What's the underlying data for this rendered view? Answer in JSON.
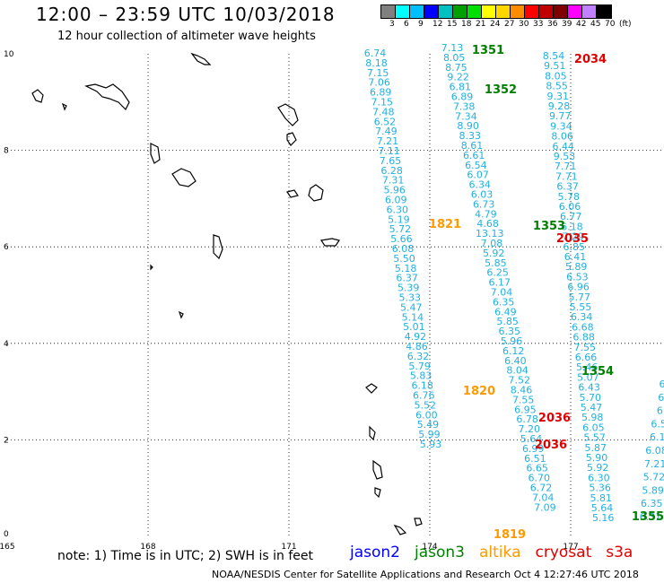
{
  "title": "12:00 – 23:59 UTC 10/03/2018",
  "subtitle": "12 hour collection of altimeter wave heights",
  "colorbar": {
    "colors": [
      "#808080",
      "#00ffff",
      "#00bfff",
      "#0000ff",
      "#00c0c0",
      "#00a000",
      "#00e000",
      "#ffff00",
      "#ffd700",
      "#ff8c00",
      "#ff0000",
      "#c00000",
      "#800000",
      "#ff00ff",
      "#c080ff",
      "#000000"
    ],
    "labels": [
      "3",
      "6",
      "9",
      "12",
      "15",
      "18",
      "21",
      "24",
      "27",
      "30",
      "33",
      "36",
      "39",
      "42",
      "45",
      "70",
      "(ft)"
    ]
  },
  "axes": {
    "x_ticks": [
      "165",
      "168",
      "171",
      "174",
      "177"
    ],
    "y_ticks": [
      "0",
      "2",
      "4",
      "6",
      "8",
      "10"
    ]
  },
  "tracks": [
    {
      "color": "#20b0e0",
      "values": [
        "6.74",
        "8.18",
        "7.15",
        "7.06",
        "6.89",
        "7.15",
        "7.48",
        "6.52",
        "7.49",
        "7.21",
        "7.11",
        "7.65",
        "6.28",
        "7.31",
        "5.96",
        "6.09",
        "6.30",
        "5.19",
        "5.72",
        "5.66",
        "6.08",
        "5.50",
        "5.18",
        "6.37",
        "5.39",
        "5.33",
        "5.47",
        "5.14",
        "5.01",
        "4.92",
        "4.86",
        "6.32",
        "5.79",
        "5.83",
        "6.18",
        "6.76",
        "5.52",
        "6.00",
        "5.49",
        "5.99",
        "5.93"
      ]
    },
    {
      "color": "#20b0e0",
      "values": [
        "7.13",
        "8.05",
        "8.75",
        "9.22",
        "6.81",
        "6.89",
        "7.38",
        "7.34",
        "8.90",
        "8.33",
        "8.61",
        "6.61",
        "6.54",
        "6.07",
        "6.34",
        "6.03",
        "6.73",
        "4.79",
        "4.68",
        "13.13",
        "7.08",
        "5.92",
        "5.85",
        "6.25",
        "6.17",
        "7.04",
        "6.35",
        "6.49",
        "5.85",
        "6.35",
        "5.96",
        "6.12",
        "6.40",
        "8.04",
        "7.52",
        "8.46",
        "7.55",
        "6.95",
        "6.78",
        "7.20",
        "5.64",
        "6.99",
        "6.51",
        "6.65",
        "6.70",
        "6.72",
        "7.04",
        "7.09"
      ]
    },
    {
      "color": "#20b0e0",
      "values": [
        "8.54",
        "9.51",
        "8.05",
        "8.55",
        "9.31",
        "9.28",
        "9.77",
        "9.34",
        "8.06",
        "6.44",
        "9.53",
        "7.71",
        "7.71",
        "6.37",
        "5.78",
        "6.06",
        "6.77",
        "6.18",
        "7.29",
        "6.85",
        "6.41",
        "5.89",
        "6.53",
        "6.96",
        "5.77",
        "5.55",
        "6.34",
        "6.68",
        "6.88",
        "7.55",
        "6.66",
        "5.46",
        "5.07",
        "6.43",
        "5.70",
        "5.47",
        "5.98",
        "6.05",
        "5.57",
        "5.87",
        "5.90",
        "5.92",
        "6.30",
        "5.36",
        "5.81",
        "5.64",
        "5.16"
      ]
    },
    {
      "color": "#20b0e0",
      "values": [
        "6",
        "6",
        "6",
        "6.5",
        "6.1",
        "6.08",
        "7.21",
        "5.72",
        "5.89",
        "6.35",
        "6.31"
      ]
    }
  ],
  "times": [
    {
      "text": "1351",
      "color": "#008000"
    },
    {
      "text": "1352",
      "color": "#008000"
    },
    {
      "text": "2034",
      "color": "#e00000"
    },
    {
      "text": "1821",
      "color": "#ff9900"
    },
    {
      "text": "1353",
      "color": "#008000"
    },
    {
      "text": "2035",
      "color": "#e00000"
    },
    {
      "text": "1354",
      "color": "#008000"
    },
    {
      "text": "1820",
      "color": "#ff9900"
    },
    {
      "text": "2036",
      "color": "#e00000"
    },
    {
      "text": "2036",
      "color": "#e00000"
    },
    {
      "text": "1819",
      "color": "#ff9900"
    },
    {
      "text": "1355",
      "color": "#008000"
    }
  ],
  "note": "note:  1) Time is in UTC;  2) SWH is in feet",
  "legend": [
    {
      "text": "jason2",
      "color": "#0000ff"
    },
    {
      "text": "jason3",
      "color": "#008000"
    },
    {
      "text": "altika",
      "color": "#ff9900"
    },
    {
      "text": "cryosat",
      "color": "#e00000"
    },
    {
      "text": "s3a",
      "color": "#e00000"
    }
  ],
  "footer": "NOAA/NESDIS Center for Satellite Applications and Research     Oct  4 12:27:46 UTC 2018"
}
